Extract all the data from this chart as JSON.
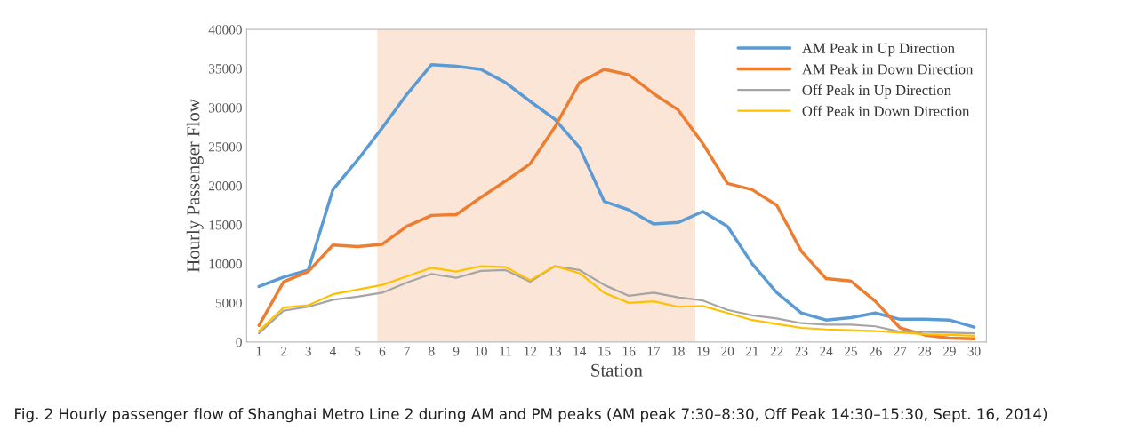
{
  "chart_data": {
    "type": "line",
    "xlabel": "Station",
    "ylabel": "Hourly Passenger Flow",
    "x": [
      1,
      2,
      3,
      4,
      5,
      6,
      7,
      8,
      9,
      10,
      11,
      12,
      13,
      14,
      15,
      16,
      17,
      18,
      19,
      20,
      21,
      22,
      23,
      24,
      25,
      26,
      27,
      28,
      29,
      30
    ],
    "xlim": [
      0.5,
      30.5
    ],
    "xticks": [
      1,
      2,
      3,
      4,
      5,
      6,
      7,
      8,
      9,
      10,
      11,
      12,
      13,
      14,
      15,
      16,
      17,
      18,
      19,
      20,
      21,
      22,
      23,
      24,
      25,
      26,
      27,
      28,
      29,
      30
    ],
    "ylim": [
      0,
      40000
    ],
    "yticks": [
      0,
      5000,
      10000,
      15000,
      20000,
      25000,
      30000,
      35000,
      40000
    ],
    "grid": false,
    "legend": "top right",
    "marker": "none",
    "line_style": "solid",
    "bands": [
      {
        "axis": "x",
        "from": 5.8,
        "to": 18.7,
        "color": "#fbe5d6"
      }
    ],
    "series": [
      {
        "name": "AM Peak in Up Direction",
        "color": "#5b9bd5",
        "values": [
          7100,
          8300,
          9200,
          19500,
          23300,
          27400,
          31700,
          35500,
          35300,
          34900,
          33200,
          30800,
          28500,
          24900,
          18000,
          16900,
          15100,
          15300,
          16700,
          14800,
          10000,
          6300,
          3700,
          2800,
          3100,
          3700,
          2900,
          2900,
          2800,
          1900
        ]
      },
      {
        "name": "AM Peak in Down Direction",
        "color": "#ed7d31",
        "values": [
          2100,
          7700,
          9000,
          12400,
          12200,
          12500,
          14800,
          16200,
          16300,
          18500,
          20600,
          22800,
          27500,
          33200,
          34900,
          34200,
          31800,
          29700,
          25400,
          20300,
          19500,
          17500,
          11600,
          8100,
          7800,
          5200,
          1800,
          900,
          500,
          400
        ]
      },
      {
        "name": "Off Peak in Up Direction",
        "color": "#a5a5a5",
        "values": [
          1100,
          4000,
          4500,
          5400,
          5800,
          6300,
          7600,
          8700,
          8200,
          9100,
          9200,
          7700,
          9700,
          9200,
          7300,
          5900,
          6300,
          5700,
          5300,
          4100,
          3400,
          3000,
          2400,
          2200,
          2200,
          2000,
          1300,
          1300,
          1200,
          1100
        ]
      },
      {
        "name": "Off Peak in Down Direction",
        "color": "#ffc000",
        "values": [
          1400,
          4400,
          4700,
          6100,
          6700,
          7300,
          8400,
          9500,
          9000,
          9700,
          9600,
          7900,
          9700,
          8800,
          6300,
          5000,
          5200,
          4500,
          4600,
          3700,
          2800,
          2300,
          1800,
          1600,
          1500,
          1400,
          1200,
          1000,
          900,
          800
        ]
      }
    ],
    "annotations": [
      "Fig. 2 Hourly passenger flow of Shanghai Metro Line 2 during AM and PM peaks (AM peak 7:30–8:30, Off Peak 14:30–15:30, Sept. 16, 2014)"
    ]
  }
}
